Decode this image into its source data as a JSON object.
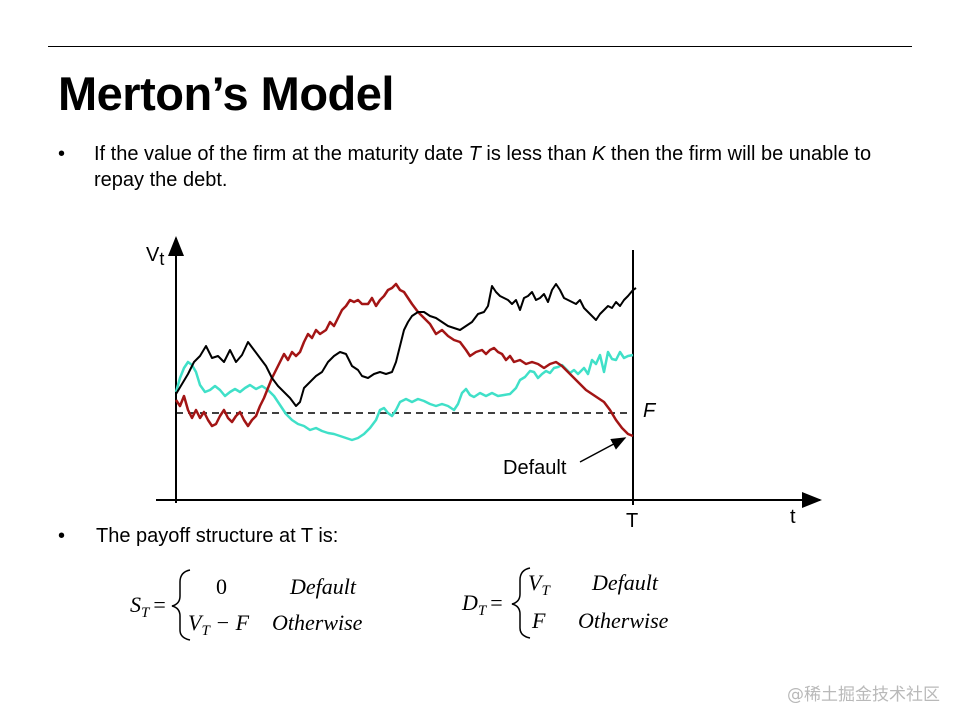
{
  "slide": {
    "title": "Merton’s Model",
    "bullet1": {
      "p1": "If the value of the firm at the maturity date ",
      "T": "T",
      "p2": " is less than ",
      "K": "K",
      "p3": " then the firm will be unable to repay the debt."
    },
    "bullet2": "The payoff structure at T is:",
    "bullet_symbol": "•"
  },
  "diagram": {
    "y_label_main": "V",
    "y_label_sub": "t",
    "x_label": "t",
    "maturity_label": "T",
    "barrier_label": "F",
    "default_label": "Default",
    "series_colors": {
      "black": "#000000",
      "red": "#a31515",
      "cyan": "#40e0c8"
    }
  },
  "formulas": {
    "s": {
      "lhs": "S",
      "lhs_sub": "T",
      "eq": "=",
      "case1": "0",
      "case1_cond": "Default",
      "case2_v": "V",
      "case2_sub": "T",
      "case2_rest": " − F",
      "case2_cond": "Otherwise"
    },
    "d": {
      "lhs": "D",
      "lhs_sub": "T",
      "eq": "=",
      "case1_v": "V",
      "case1_sub": "T",
      "case1_cond": "Default",
      "case2": "F",
      "case2_cond": "Otherwise"
    }
  },
  "watermark": "@稀土掘金技术社区"
}
